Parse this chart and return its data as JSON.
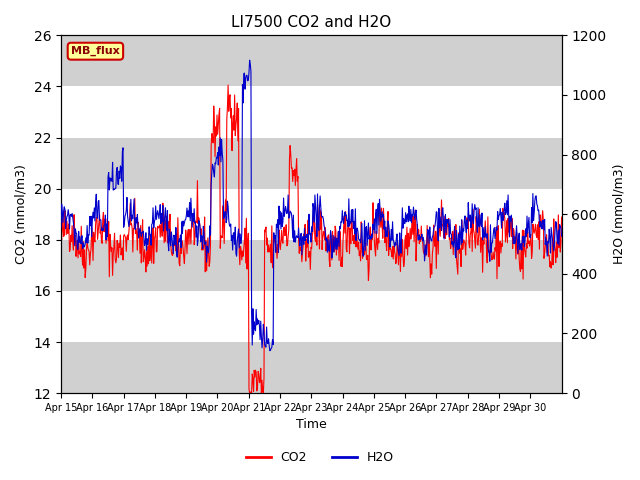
{
  "title": "LI7500 CO2 and H2O",
  "xlabel": "Time",
  "ylabel_left": "CO2 (mmol/m3)",
  "ylabel_right": "H2O (mmol/m3)",
  "ylim_left": [
    12,
    26
  ],
  "ylim_right": [
    0,
    1200
  ],
  "yticks_left": [
    12,
    14,
    16,
    18,
    20,
    22,
    24,
    26
  ],
  "yticks_right": [
    0,
    200,
    400,
    600,
    800,
    1000,
    1200
  ],
  "xtick_labels": [
    "Apr 15",
    "Apr 16",
    "Apr 17",
    "Apr 18",
    "Apr 19",
    "Apr 20",
    "Apr 21",
    "Apr 22",
    "Apr 23",
    "Apr 24",
    "Apr 25",
    "Apr 26",
    "Apr 27",
    "Apr 28",
    "Apr 29",
    "Apr 30"
  ],
  "band_color": "#d0d0d0",
  "co2_color": "#ff0000",
  "h2o_color": "#0000cc",
  "annotation_text": "MB_flux",
  "annotation_bg": "#ffff99",
  "annotation_border": "#cc0000",
  "seed": 42
}
